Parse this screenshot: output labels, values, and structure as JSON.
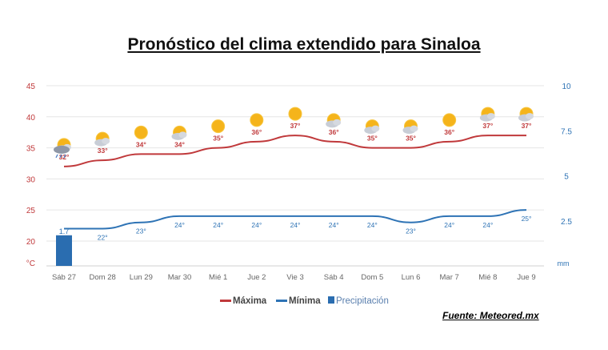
{
  "title": "Pronóstico del clima extendido para Sinaloa",
  "source": "Fuente: Meteored.mx",
  "colors": {
    "max": "#c0393b",
    "min": "#2e73b5",
    "precip": "#2a6db0",
    "axis_left": "#c0393b",
    "axis_right": "#2e73b5",
    "grid": "#e6e6e6",
    "label": "#666666"
  },
  "chart_data": {
    "type": "line",
    "categories": [
      "Sáb 27",
      "Dom 28",
      "Lun 29",
      "Mar 30",
      "Mié 1",
      "Jue 2",
      "Vie 3",
      "Sáb 4",
      "Dom 5",
      "Lun 6",
      "Mar 7",
      "Mié 8",
      "Jue 9"
    ],
    "weather_icons": [
      "rain-cloud-sun-icon",
      "sun-cloud-icon",
      "sun-icon",
      "sun-cloud-icon",
      "sun-icon",
      "sun-icon",
      "sun-icon",
      "sun-cloud-icon",
      "sun-cloud-icon",
      "sun-cloud-icon",
      "sun-icon",
      "sun-cloud-icon",
      "sun-cloud-icon"
    ],
    "series": [
      {
        "name": "Máxima",
        "axis": "left",
        "values": [
          32,
          33,
          34,
          34,
          35,
          36,
          37,
          36,
          35,
          35,
          36,
          37,
          37
        ],
        "labels": [
          "32°",
          "33°",
          "34°",
          "34°",
          "35°",
          "36°",
          "37°",
          "36°",
          "35°",
          "35°",
          "36°",
          "37°",
          "37°"
        ]
      },
      {
        "name": "Mínima",
        "axis": "left",
        "values": [
          22,
          22,
          23,
          24,
          24,
          24,
          24,
          24,
          24,
          23,
          24,
          24,
          25
        ],
        "labels": [
          "",
          "22°",
          "23°",
          "24°",
          "24°",
          "24°",
          "24°",
          "24°",
          "24°",
          "23°",
          "24°",
          "24°",
          "25°"
        ]
      },
      {
        "name": "Precipitación",
        "axis": "right",
        "type": "bar",
        "values": [
          1.7,
          0,
          0,
          0,
          0,
          0,
          0,
          0,
          0,
          0,
          0,
          0,
          0
        ],
        "labels": [
          "1.7",
          "",
          "",
          "",
          "",
          "",
          "",
          "",
          "",
          "",
          "",
          "",
          ""
        ]
      }
    ],
    "left_axis": {
      "unit": "°C",
      "ticks": [
        20,
        25,
        30,
        35,
        40,
        45
      ],
      "ylim": [
        16,
        45
      ]
    },
    "right_axis": {
      "unit": "mm",
      "ticks": [
        2.5,
        5,
        7.5,
        10
      ],
      "tick_labels": [
        "2.5",
        "5",
        "7.5",
        "10"
      ],
      "ylim": [
        0,
        10
      ]
    },
    "legend": {
      "position": "bottom",
      "items": [
        "Máxima",
        "Mínima",
        "Precipitación"
      ]
    },
    "grid": true
  }
}
